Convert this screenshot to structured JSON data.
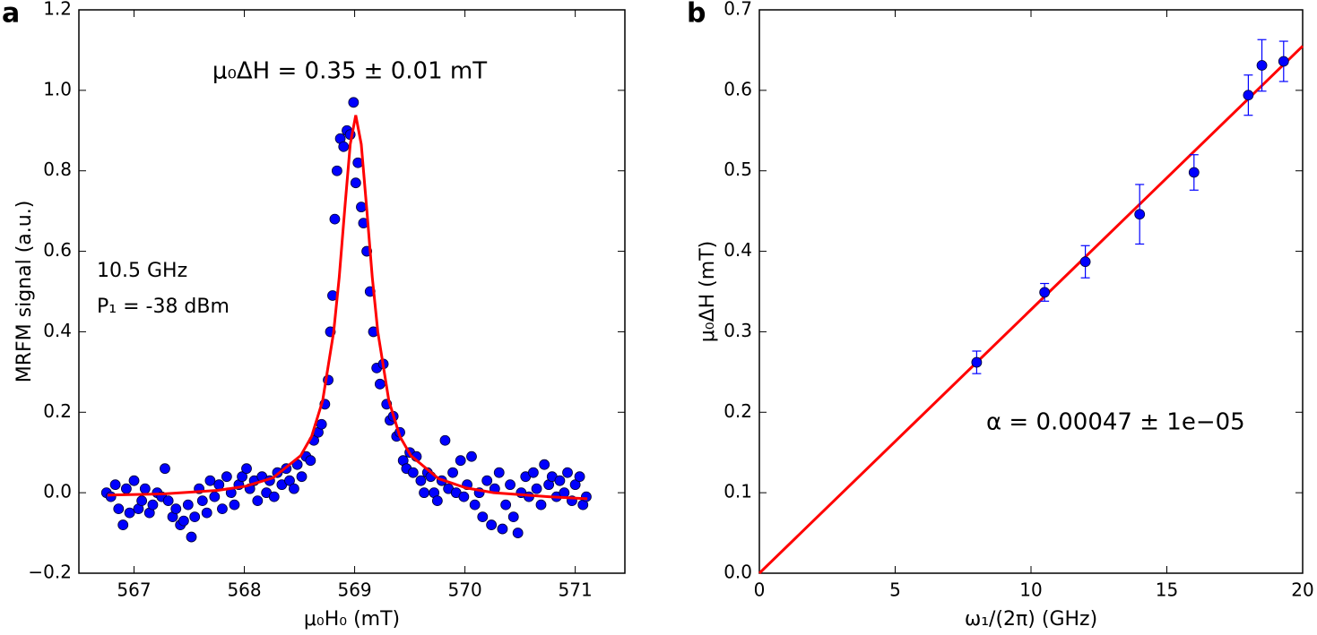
{
  "chart_data": [
    {
      "type": "scatter",
      "panel_label": "a",
      "xlabel": "μ₀H₀ (mT)",
      "ylabel": "MRFM signal (a.u.)",
      "annotations": [
        {
          "text": "μ₀ΔH = 0.35 ± 0.01 mT",
          "color": "#ff0000"
        },
        {
          "text": "10.5 GHz",
          "color": "#000000"
        },
        {
          "text": "P₁ = -38 dBm",
          "color": "#000000"
        }
      ],
      "xlim": [
        566.5,
        571.45
      ],
      "ylim": [
        -0.2,
        1.2
      ],
      "xticks": [
        567,
        568,
        569,
        570,
        571
      ],
      "yticks": [
        {
          "value": -0.2,
          "label": "−0.2"
        },
        {
          "value": 0,
          "label": "0.0"
        },
        0.2,
        0.4,
        0.6,
        0.8,
        {
          "value": 1,
          "label": "1.0"
        },
        1.2
      ],
      "series": [
        {
          "type": "scatter",
          "color": "#0000ff",
          "x": [
            566.75,
            566.79,
            566.83,
            566.86,
            566.9,
            566.93,
            566.96,
            567.0,
            567.04,
            567.07,
            567.1,
            567.14,
            567.17,
            567.21,
            567.25,
            567.28,
            567.31,
            567.35,
            567.38,
            567.42,
            567.45,
            567.49,
            567.52,
            567.55,
            567.59,
            567.62,
            567.66,
            567.69,
            567.73,
            567.77,
            567.8,
            567.84,
            567.88,
            567.91,
            567.95,
            567.98,
            568.02,
            568.05,
            568.09,
            568.12,
            568.16,
            568.2,
            568.23,
            568.27,
            568.3,
            568.34,
            568.38,
            568.41,
            568.45,
            568.48,
            568.52,
            568.56,
            568.6,
            568.63,
            568.67,
            568.7,
            568.73,
            568.76,
            568.78,
            568.8,
            568.82,
            568.84,
            568.87,
            568.9,
            568.93,
            568.96,
            568.99,
            569.01,
            569.03,
            569.06,
            569.08,
            569.11,
            569.14,
            569.17,
            569.2,
            569.23,
            569.26,
            569.29,
            569.32,
            569.35,
            569.38,
            569.41,
            569.44,
            569.47,
            569.5,
            569.53,
            569.56,
            569.6,
            569.63,
            569.66,
            569.69,
            569.72,
            569.75,
            569.79,
            569.82,
            569.85,
            569.89,
            569.92,
            569.96,
            569.99,
            570.02,
            570.06,
            570.09,
            570.13,
            570.16,
            570.2,
            570.24,
            570.27,
            570.31,
            570.34,
            570.37,
            570.41,
            570.44,
            570.48,
            570.51,
            570.55,
            570.58,
            570.62,
            570.65,
            570.69,
            570.72,
            570.76,
            570.79,
            570.83,
            570.86,
            570.9,
            570.93,
            570.97,
            571.0,
            571.04,
            571.07,
            571.1
          ],
          "values": [
            0.0,
            -0.01,
            0.02,
            -0.04,
            -0.08,
            0.01,
            -0.05,
            0.03,
            -0.04,
            -0.02,
            0.01,
            -0.05,
            -0.03,
            0.0,
            -0.01,
            0.06,
            -0.02,
            -0.06,
            -0.04,
            -0.08,
            -0.07,
            -0.03,
            -0.11,
            -0.06,
            0.01,
            -0.02,
            -0.05,
            0.03,
            -0.01,
            0.02,
            -0.04,
            0.04,
            0.0,
            -0.03,
            0.02,
            0.04,
            0.06,
            0.01,
            0.03,
            -0.02,
            0.04,
            0.0,
            0.03,
            -0.01,
            0.05,
            0.02,
            0.06,
            0.03,
            0.01,
            0.07,
            0.04,
            0.09,
            0.08,
            0.13,
            0.15,
            0.17,
            0.22,
            0.28,
            0.4,
            0.49,
            0.68,
            0.8,
            0.88,
            0.86,
            0.9,
            0.89,
            0.97,
            0.77,
            0.82,
            0.71,
            0.67,
            0.6,
            0.5,
            0.4,
            0.31,
            0.27,
            0.32,
            0.22,
            0.18,
            0.19,
            0.14,
            0.15,
            0.08,
            0.06,
            0.1,
            0.05,
            0.09,
            0.03,
            0.0,
            0.05,
            0.04,
            0.0,
            -0.02,
            0.03,
            0.13,
            0.01,
            0.05,
            0.0,
            0.08,
            -0.01,
            0.02,
            0.09,
            -0.03,
            0.0,
            -0.06,
            0.03,
            -0.08,
            0.01,
            0.05,
            -0.09,
            -0.03,
            0.02,
            -0.06,
            -0.1,
            0.0,
            0.04,
            -0.01,
            0.05,
            0.01,
            -0.03,
            0.07,
            0.02,
            0.04,
            -0.01,
            0.03,
            0.0,
            0.05,
            -0.02,
            0.02,
            0.04,
            -0.03,
            -0.01
          ]
        },
        {
          "type": "line",
          "color": "#ff0000",
          "x": [
            566.76,
            567.26,
            567.76,
            568.01,
            568.26,
            568.51,
            568.61,
            568.71,
            568.81,
            568.86,
            568.91,
            568.96,
            569.01,
            569.06,
            569.11,
            569.16,
            569.21,
            569.31,
            569.41,
            569.51,
            569.76,
            570.01,
            570.26,
            570.76,
            571.11
          ],
          "values": [
            -0.006,
            -0.003,
            0.006,
            0.016,
            0.037,
            0.092,
            0.14,
            0.229,
            0.4,
            0.535,
            0.704,
            0.866,
            0.938,
            0.866,
            0.704,
            0.535,
            0.4,
            0.229,
            0.14,
            0.092,
            0.035,
            0.012,
            0.0,
            -0.01,
            -0.015
          ]
        }
      ]
    },
    {
      "type": "scatter",
      "panel_label": "b",
      "xlabel": "ω₁/(2π) (GHz)",
      "ylabel": "μ₀ΔH (mT)",
      "annotations": [
        {
          "text": "α = 0.00047 ± 1e−05",
          "color": "#ff0000"
        }
      ],
      "xlim": [
        0,
        20
      ],
      "ylim": [
        0,
        0.7
      ],
      "xticks": [
        0,
        5,
        10,
        15,
        20
      ],
      "yticks": [
        {
          "value": 0,
          "label": "0.0"
        },
        0.1,
        0.2,
        0.3,
        0.4,
        0.5,
        0.6,
        0.7
      ],
      "series": [
        {
          "type": "scatter",
          "color": "#0000ff",
          "x": [
            8,
            10.5,
            12,
            14,
            16,
            18,
            18.5,
            19.3
          ],
          "values": [
            0.262,
            0.349,
            0.387,
            0.446,
            0.498,
            0.594,
            0.631,
            0.636
          ],
          "errors": [
            0.014,
            0.011,
            0.02,
            0.037,
            0.022,
            0.025,
            0.032,
            0.025
          ]
        },
        {
          "type": "line",
          "color": "#ff0000",
          "x": [
            0,
            20
          ],
          "values": [
            0,
            0.655
          ]
        }
      ]
    }
  ]
}
